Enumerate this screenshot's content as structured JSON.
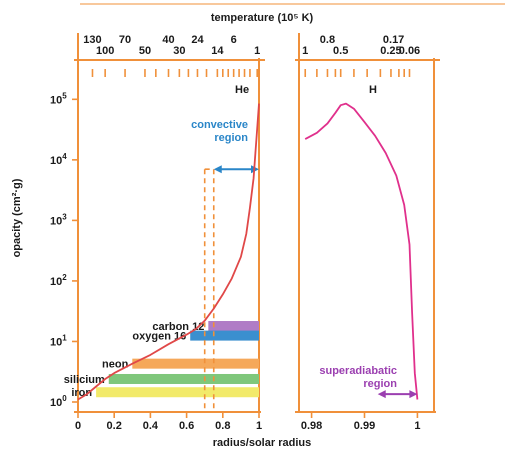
{
  "chart_data": {
    "type": "line",
    "title": "",
    "ylabel": "opacity (cm²·g)",
    "xlabel": "radius/solar radius",
    "top_axis_label": "temperature (10⁵ K)",
    "y_scale": "log",
    "ylim": [
      1,
      100000
    ],
    "y_ticks": [
      {
        "mant": "10",
        "exp": "0",
        "value": 1
      },
      {
        "mant": "10",
        "exp": "1",
        "value": 10
      },
      {
        "mant": "10",
        "exp": "2",
        "value": 100
      },
      {
        "mant": "10",
        "exp": "3",
        "value": 1000
      },
      {
        "mant": "10",
        "exp": "4",
        "value": 10000
      },
      {
        "mant": "10",
        "exp": "5",
        "value": 100000
      }
    ],
    "left_panel": {
      "xlim": [
        0,
        1
      ],
      "x_ticks": [
        "0",
        "0.2",
        "0.4",
        "0.6",
        "0.8",
        "1"
      ],
      "top_ticks_row1": [
        {
          "label": "130",
          "x": 0.08
        },
        {
          "label": "70",
          "x": 0.26
        },
        {
          "label": "40",
          "x": 0.5
        },
        {
          "label": "24",
          "x": 0.66
        },
        {
          "label": "6",
          "x": 0.86
        }
      ],
      "top_ticks_row2": [
        {
          "label": "100",
          "x": 0.15
        },
        {
          "label": "50",
          "x": 0.37
        },
        {
          "label": "30",
          "x": 0.56
        },
        {
          "label": "14",
          "x": 0.77
        },
        {
          "label": "1",
          "x": 0.99
        }
      ],
      "curve": {
        "x": [
          0.0,
          0.05,
          0.1,
          0.15,
          0.2,
          0.3,
          0.4,
          0.5,
          0.6,
          0.65,
          0.7,
          0.75,
          0.8,
          0.85,
          0.9,
          0.93,
          0.95,
          0.97,
          0.98,
          0.99,
          1.0
        ],
        "y": [
          1.1,
          1.35,
          1.8,
          2.4,
          3.0,
          4.3,
          6.0,
          9.0,
          13,
          16,
          22,
          35,
          60,
          110,
          250,
          600,
          1600,
          5000,
          13000,
          33000,
          85000
        ]
      },
      "he_label": "He",
      "bands": [
        {
          "name": "carbon 12",
          "x_start": 0.72,
          "x_end": 1.0,
          "y": 18,
          "color": "#b07cc6"
        },
        {
          "name": "oxygen 16",
          "x_start": 0.62,
          "x_end": 1.0,
          "y": 12.5,
          "color": "#3b8fcf"
        },
        {
          "name": "neon",
          "x_start": 0.3,
          "x_end": 1.0,
          "y": 4.3,
          "color": "#f5a85a"
        },
        {
          "name": "silicium",
          "x_start": 0.17,
          "x_end": 1.0,
          "y": 2.4,
          "color": "#7fc77b"
        },
        {
          "name": "iron",
          "x_start": 0.1,
          "x_end": 1.0,
          "y": 1.45,
          "color": "#f2ea6a"
        }
      ],
      "convective_region": {
        "label_line1": "convective",
        "label_line2": "region",
        "x_start": 0.75,
        "x_end": 1.0,
        "y": 7000,
        "dashed_x": [
          0.7,
          0.75
        ]
      }
    },
    "right_panel": {
      "xlim": [
        0.978,
        1.002
      ],
      "x_ticks": [
        {
          "label": "0.98",
          "value": 0.98
        },
        {
          "label": "0.99",
          "value": 0.99
        },
        {
          "label": "1",
          "value": 1.0
        }
      ],
      "top_ticks_row1": [
        {
          "label": "0.8",
          "x": 0.983
        },
        {
          "label": "0.17",
          "x": 0.9955
        }
      ],
      "top_ticks_row2": [
        {
          "label": "1",
          "x": 0.9788
        },
        {
          "label": "0.5",
          "x": 0.9855
        },
        {
          "label": "0.25",
          "x": 0.995
        },
        {
          "label": "0.06",
          "x": 0.9985
        }
      ],
      "curve": {
        "x": [
          0.9788,
          0.981,
          0.983,
          0.9845,
          0.9855,
          0.9865,
          0.988,
          0.99,
          0.992,
          0.994,
          0.996,
          0.9975,
          0.9985,
          0.999,
          0.9995,
          1.0
        ],
        "y": [
          22000,
          28000,
          40000,
          60000,
          80000,
          85000,
          70000,
          42000,
          25000,
          13000,
          5500,
          1800,
          400,
          30,
          3,
          1.1
        ]
      },
      "h_label": "H",
      "superadiabatic_region": {
        "label_line1": "superadiabatic",
        "label_line2": "region",
        "x_start": 0.9925,
        "x_end": 1.0,
        "y": 1.35
      }
    },
    "colors": {
      "axis": "#f0903a",
      "curve_left": "#e04848",
      "curve_right": "#e0308c",
      "convective": "#2a86c8",
      "superadiabatic": "#9b3fb0"
    }
  }
}
